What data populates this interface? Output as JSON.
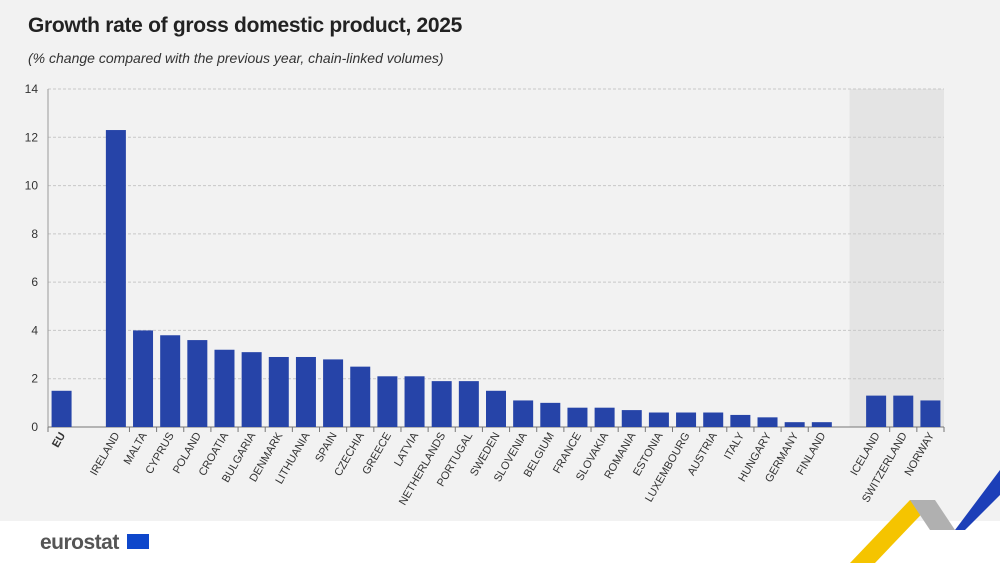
{
  "chart_data": {
    "type": "bar",
    "title": "Growth rate of gross domestic product, 2025",
    "subtitle": "(% change compared with the previous year, chain-linked volumes)",
    "categories": [
      "EU",
      "IRELAND",
      "MALTA",
      "CYPRUS",
      "POLAND",
      "CROATIA",
      "BULGARIA",
      "DENMARK",
      "LITHUANIA",
      "SPAIN",
      "CZECHIA",
      "GREECE",
      "LATVIA",
      "NETHERLANDS",
      "PORTUGAL",
      "SWEDEN",
      "SLOVENIA",
      "BELGIUM",
      "FRANCE",
      "SLOVAKIA",
      "ROMANIA",
      "ESTONIA",
      "LUXEMBOURG",
      "AUSTRIA",
      "ITALY",
      "HUNGARY",
      "GERMANY",
      "FINLAND",
      "ICELAND",
      "SWITZERLAND",
      "NORWAY"
    ],
    "groups": [
      "eu",
      "member",
      "member",
      "member",
      "member",
      "member",
      "member",
      "member",
      "member",
      "member",
      "member",
      "member",
      "member",
      "member",
      "member",
      "member",
      "member",
      "member",
      "member",
      "member",
      "member",
      "member",
      "member",
      "member",
      "member",
      "member",
      "member",
      "member",
      "efta",
      "efta",
      "efta"
    ],
    "values": [
      1.5,
      12.3,
      4.0,
      3.8,
      3.6,
      3.2,
      3.1,
      2.9,
      2.9,
      2.8,
      2.5,
      2.1,
      2.1,
      1.9,
      1.9,
      1.5,
      1.1,
      1.0,
      0.8,
      0.8,
      0.7,
      0.6,
      0.6,
      0.6,
      0.5,
      0.4,
      0.2,
      0.2,
      1.3,
      1.3,
      1.1
    ],
    "ylim": [
      0,
      14
    ],
    "yticks": [
      "0",
      "2",
      "4",
      "6",
      "8",
      "10",
      "12",
      "14"
    ],
    "grid": true,
    "colors": {
      "bar": "#2644a8",
      "efta_shade": "#e4e4e4"
    }
  },
  "footer": {
    "logo": "eurostat"
  }
}
